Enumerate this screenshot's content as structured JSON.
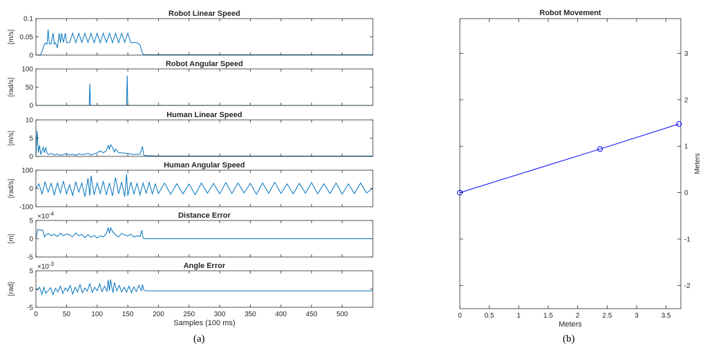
{
  "captions": {
    "a": "(a)",
    "b": "(b)"
  },
  "colors": {
    "series": "#0072BD",
    "axis": "#262626",
    "movement": "#0000FF"
  },
  "chart_data": [
    {
      "id": "robot-linear-speed",
      "type": "line",
      "title": "Robot Linear Speed",
      "ylabel": "[m/s]",
      "xlim": [
        0,
        550
      ],
      "ylim": [
        0,
        0.1
      ],
      "yticks": [
        0,
        0.05,
        0.1
      ],
      "yticklabels": [
        "0",
        "0.05",
        "0.1"
      ],
      "exponent": "",
      "series": [
        {
          "x": [
            0,
            8,
            12,
            15,
            18,
            20,
            22,
            25,
            28,
            30,
            32,
            35,
            38,
            40,
            42,
            45,
            48,
            50,
            55,
            60,
            65,
            70,
            75,
            80,
            85,
            90,
            95,
            100,
            105,
            110,
            115,
            120,
            125,
            130,
            135,
            140,
            145,
            150,
            155,
            160,
            165,
            170,
            172,
            174,
            176,
            180,
            200,
            300,
            400,
            500,
            550
          ],
          "y": [
            0,
            0.001,
            0.02,
            0.033,
            0.03,
            0.07,
            0.03,
            0.032,
            0.06,
            0.03,
            0.034,
            0.02,
            0.06,
            0.034,
            0.06,
            0.035,
            0.06,
            0.035,
            0.034,
            0.06,
            0.034,
            0.06,
            0.035,
            0.06,
            0.035,
            0.06,
            0.034,
            0.06,
            0.034,
            0.06,
            0.035,
            0.06,
            0.034,
            0.06,
            0.034,
            0.06,
            0.035,
            0.06,
            0.034,
            0.035,
            0.034,
            0.028,
            0.015,
            0.005,
            0.001,
            0.001,
            0.001,
            0.001,
            0.001,
            0.001,
            0.001
          ]
        }
      ]
    },
    {
      "id": "robot-angular-speed",
      "type": "line",
      "title": "Robot Angular Speed",
      "ylabel": "[rad/s]",
      "xlim": [
        0,
        550
      ],
      "ylim": [
        0,
        100
      ],
      "yticks": [
        0,
        50,
        100
      ],
      "yticklabels": [
        "0",
        "50",
        "100"
      ],
      "exponent": "",
      "series": [
        {
          "x": [
            0,
            20,
            40,
            60,
            80,
            87,
            88,
            89,
            90,
            100,
            120,
            140,
            148,
            149,
            150,
            151,
            160,
            200,
            300,
            400,
            500,
            550
          ],
          "y": [
            0,
            0,
            0,
            0,
            0,
            0,
            60,
            0,
            0,
            0,
            0,
            0,
            0,
            82,
            0,
            0,
            0,
            0,
            0,
            0,
            0,
            0
          ]
        }
      ]
    },
    {
      "id": "human-linear-speed",
      "type": "line",
      "title": "Human Linear Speed",
      "ylabel": "[m/s]",
      "xlim": [
        0,
        550
      ],
      "ylim": [
        0,
        10
      ],
      "yticks": [
        0,
        5,
        10
      ],
      "yticklabels": [
        "0",
        "5",
        "10"
      ],
      "exponent": "",
      "series": [
        {
          "x": [
            0,
            2,
            4,
            6,
            8,
            12,
            14,
            16,
            18,
            20,
            25,
            30,
            35,
            40,
            45,
            50,
            55,
            60,
            65,
            70,
            75,
            80,
            85,
            90,
            95,
            100,
            105,
            110,
            115,
            118,
            120,
            122,
            125,
            128,
            130,
            135,
            140,
            150,
            160,
            170,
            174,
            176,
            180,
            200,
            250,
            300,
            350,
            400,
            450,
            500,
            550
          ],
          "y": [
            0,
            7,
            1,
            3,
            0.5,
            2.5,
            1,
            2.5,
            1,
            0.5,
            0.8,
            0.4,
            0.6,
            0.3,
            0.5,
            0.8,
            0.4,
            0.6,
            0.3,
            0.7,
            0.5,
            0.6,
            0.8,
            0.4,
            0.7,
            1,
            1.5,
            1,
            1.5,
            3,
            2,
            3.2,
            2.5,
            1.2,
            2,
            1,
            1,
            0.8,
            0.5,
            0.6,
            2.7,
            0.3,
            0.2,
            0.1,
            0.1,
            0.1,
            0.1,
            0.1,
            0.1,
            0.1,
            0.1
          ]
        }
      ]
    },
    {
      "id": "human-angular-speed",
      "type": "line",
      "title": "Human Angular Speed",
      "ylabel": "[rad/s]",
      "xlim": [
        0,
        550
      ],
      "ylim": [
        -100,
        100
      ],
      "yticks": [
        -100,
        0,
        100
      ],
      "yticklabels": [
        "-100",
        "0",
        "100"
      ],
      "exponent": "",
      "series": [
        {
          "x": [
            0,
            5,
            10,
            15,
            20,
            25,
            30,
            35,
            40,
            45,
            50,
            55,
            60,
            65,
            70,
            75,
            80,
            85,
            88,
            90,
            95,
            100,
            105,
            110,
            115,
            120,
            125,
            130,
            135,
            140,
            145,
            148,
            150,
            155,
            160,
            165,
            170,
            175,
            180,
            185,
            190,
            195,
            200,
            210,
            220,
            230,
            240,
            250,
            260,
            270,
            280,
            290,
            300,
            310,
            320,
            330,
            340,
            350,
            360,
            370,
            380,
            390,
            400,
            410,
            420,
            430,
            440,
            450,
            460,
            470,
            480,
            490,
            500,
            510,
            520,
            530,
            540,
            550
          ],
          "y": [
            0,
            25,
            -30,
            35,
            -20,
            28,
            -35,
            30,
            -25,
            40,
            -30,
            20,
            -38,
            35,
            -20,
            30,
            -45,
            55,
            -40,
            70,
            -35,
            30,
            -28,
            40,
            -35,
            30,
            -40,
            60,
            -30,
            35,
            -45,
            80,
            -40,
            35,
            -30,
            28,
            -35,
            30,
            -25,
            33,
            -30,
            25,
            -28,
            30,
            -32,
            26,
            -30,
            24,
            -34,
            30,
            -26,
            28,
            -30,
            32,
            -28,
            30,
            -25,
            28,
            -32,
            30,
            -26,
            34,
            -28,
            25,
            -30,
            28,
            -26,
            32,
            -30,
            26,
            -28,
            30,
            -32,
            25,
            -28,
            30,
            -25,
            0
          ]
        }
      ]
    },
    {
      "id": "distance-error",
      "type": "line",
      "title": "Distance Error",
      "ylabel": "[m]",
      "xlim": [
        0,
        550
      ],
      "ylim": [
        -5,
        5
      ],
      "yticks": [
        -5,
        0,
        5
      ],
      "yticklabels": [
        "-5",
        "0",
        "5"
      ],
      "exponent": "-4",
      "series": [
        {
          "x": [
            0,
            3,
            5,
            8,
            10,
            12,
            14,
            16,
            20,
            25,
            30,
            35,
            40,
            45,
            50,
            55,
            60,
            65,
            70,
            75,
            80,
            85,
            90,
            95,
            100,
            105,
            110,
            115,
            118,
            120,
            122,
            125,
            128,
            130,
            135,
            140,
            145,
            150,
            155,
            160,
            165,
            170,
            173,
            175,
            177,
            180,
            200,
            250,
            300,
            350,
            400,
            450,
            500,
            550
          ],
          "y": [
            0,
            2.5,
            2.5,
            2.3,
            2.5,
            2,
            0.5,
            1,
            1.5,
            0.8,
            1.2,
            0.6,
            1.5,
            0.8,
            1.3,
            1,
            0.5,
            1.6,
            0.8,
            1.2,
            0.3,
            1.1,
            0.4,
            0.9,
            0.2,
            0.8,
            0.5,
            1.5,
            3,
            1.5,
            3,
            2,
            1.5,
            1,
            0.5,
            1.5,
            1,
            0.8,
            1.2,
            0.5,
            0.8,
            0.6,
            2.3,
            0.2,
            0,
            0,
            0,
            0,
            0,
            0,
            0,
            0,
            0,
            0
          ]
        }
      ]
    },
    {
      "id": "angle-error",
      "type": "line",
      "title": "Angle Error",
      "ylabel": "[rad]",
      "xlim": [
        0,
        550
      ],
      "ylim": [
        -5,
        5
      ],
      "yticks": [
        -5,
        0,
        5
      ],
      "yticklabels": [
        "-5",
        "0",
        "5"
      ],
      "exponent": "-3",
      "series": [
        {
          "x": [
            0,
            3,
            6,
            10,
            13,
            16,
            20,
            24,
            28,
            32,
            36,
            40,
            44,
            48,
            52,
            56,
            60,
            64,
            68,
            72,
            76,
            80,
            84,
            88,
            92,
            96,
            100,
            104,
            108,
            112,
            116,
            118,
            120,
            122,
            124,
            126,
            128,
            132,
            136,
            140,
            144,
            148,
            152,
            156,
            160,
            164,
            168,
            172,
            174,
            176,
            180,
            200,
            250,
            300,
            350,
            400,
            450,
            500,
            550
          ],
          "y": [
            0,
            -0.2,
            0.5,
            -1.5,
            0.5,
            -1.2,
            -0.5,
            0.4,
            -1.5,
            0.2,
            -0.8,
            0.8,
            -1.2,
            0.3,
            -0.6,
            1,
            -1.4,
            0.5,
            -0.8,
            1.2,
            -1,
            0.3,
            -0.6,
            1.5,
            -0.9,
            0.5,
            -0.5,
            1.4,
            -0.7,
            0.8,
            -0.6,
            2.5,
            -0.5,
            2.6,
            0.5,
            -1,
            1.8,
            -0.5,
            1,
            -0.8,
            0.5,
            -0.9,
            0.8,
            -1,
            0.6,
            -0.7,
            1,
            -0.5,
            1.2,
            -0.3,
            -0.5,
            -0.5,
            -0.5,
            -0.5,
            -0.5,
            -0.5,
            -0.5,
            -0.5,
            -0.5
          ]
        }
      ]
    },
    {
      "id": "robot-movement",
      "type": "line",
      "title": "Robot Movement",
      "xlabel": "Meters",
      "ylabel": "Meters",
      "xlim": [
        0,
        3.75
      ],
      "ylim": [
        -2.5,
        3.75
      ],
      "xticks": [
        0,
        0.5,
        1,
        1.5,
        2,
        2.5,
        3,
        3.5
      ],
      "xticklabels": [
        "0",
        "0.5",
        "1",
        "1.5",
        "2",
        "2.5",
        "3",
        "3.5"
      ],
      "yticks": [
        -2,
        -1,
        0,
        1,
        2,
        3
      ],
      "yticklabels": [
        "-2",
        "-1",
        "0",
        "1",
        "2",
        "3"
      ],
      "series": [
        {
          "x": [
            0,
            2.38,
            3.72
          ],
          "y": [
            0,
            0.94,
            1.48
          ],
          "markers": "circle"
        }
      ]
    }
  ],
  "shared_x": {
    "xlabel": "Samples (100 ms)",
    "xticks": [
      0,
      50,
      100,
      150,
      200,
      250,
      300,
      350,
      400,
      450,
      500
    ],
    "xticklabels": [
      "0",
      "50",
      "100",
      "150",
      "200",
      "250",
      "300",
      "350",
      "400",
      "450",
      "500"
    ]
  }
}
